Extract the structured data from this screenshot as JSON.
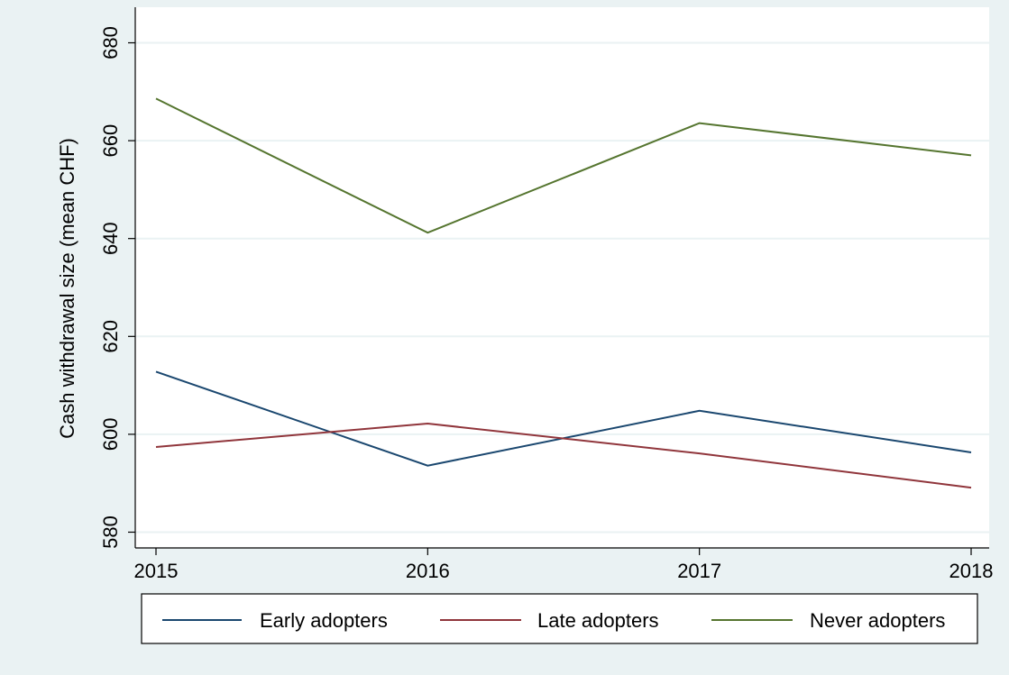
{
  "chart_data": {
    "type": "line",
    "title": "",
    "xlabel": "",
    "ylabel": "Cash withdrawal size (mean CHF)",
    "x": [
      2015,
      2016,
      2017,
      2018
    ],
    "xticks": [
      2015,
      2016,
      2017,
      2018
    ],
    "yticks": [
      580,
      600,
      620,
      640,
      660,
      680
    ],
    "ylim": [
      578,
      682
    ],
    "grid": true,
    "legend_position": "bottom",
    "series": [
      {
        "name": "Early adopters",
        "color": "#1a476f",
        "values": [
          612.8,
          593.6,
          604.8,
          596.3
        ]
      },
      {
        "name": "Late adopters",
        "color": "#90353b",
        "values": [
          597.4,
          602.2,
          596.1,
          589.1
        ]
      },
      {
        "name": "Never adopters",
        "color": "#55752f",
        "values": [
          668.6,
          641.2,
          663.6,
          657.0
        ]
      }
    ]
  },
  "colors": {
    "background": "#eaf2f3",
    "plot_background": "#ffffff",
    "grid": "#eaf2f3"
  }
}
